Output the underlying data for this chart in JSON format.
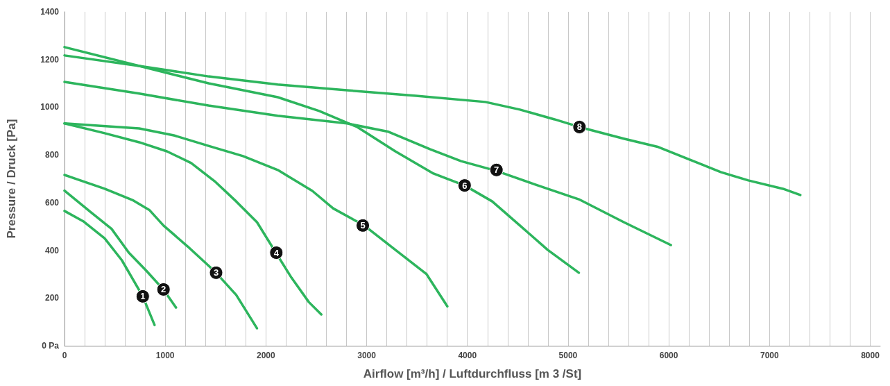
{
  "chart_data": {
    "type": "line",
    "xlabel": "Airflow [m³/h] / Luftdurchfluss [m 3 /St]",
    "ylabel": "Pressure / Druck [Pa]",
    "xlim": [
      0,
      8100
    ],
    "ylim": [
      0,
      1400
    ],
    "xticks": [
      0,
      {
        "value": 200,
        "label": null
      },
      {
        "value": 400,
        "label": null
      },
      {
        "value": 600,
        "label": null
      },
      {
        "value": 800,
        "label": null
      },
      1000,
      {
        "value": 1200,
        "label": null
      },
      {
        "value": 1400,
        "label": null
      },
      {
        "value": 1600,
        "label": null
      },
      {
        "value": 1800,
        "label": null
      },
      2000,
      {
        "value": 2200,
        "label": null
      },
      {
        "value": 2400,
        "label": null
      },
      {
        "value": 2600,
        "label": null
      },
      {
        "value": 2800,
        "label": null
      },
      3000,
      {
        "value": 3200,
        "label": null
      },
      {
        "value": 3400,
        "label": null
      },
      {
        "value": 3600,
        "label": null
      },
      {
        "value": 3800,
        "label": null
      },
      4000,
      {
        "value": 4200,
        "label": null
      },
      {
        "value": 4400,
        "label": null
      },
      {
        "value": 4600,
        "label": null
      },
      {
        "value": 4800,
        "label": null
      },
      5000,
      {
        "value": 5200,
        "label": null
      },
      {
        "value": 5400,
        "label": null
      },
      {
        "value": 5600,
        "label": null
      },
      {
        "value": 5800,
        "label": null
      },
      6000,
      {
        "value": 6200,
        "label": null
      },
      {
        "value": 6400,
        "label": null
      },
      {
        "value": 6600,
        "label": null
      },
      {
        "value": 6800,
        "label": null
      },
      7000,
      {
        "value": 7200,
        "label": null
      },
      {
        "value": 7400,
        "label": null
      },
      {
        "value": 7600,
        "label": null
      },
      {
        "value": 7800,
        "label": null
      },
      8000
    ],
    "yticks": [
      {
        "value": 0,
        "label": "0 Pa"
      },
      200,
      400,
      600,
      800,
      1000,
      1200,
      1400
    ],
    "grid": "x",
    "marker": "none",
    "line_style": "solid",
    "series": [
      {
        "color": "#2db55d",
        "x": [
          0,
          192,
          399,
          570,
          777,
          894
        ],
        "values": [
          565,
          520,
          450,
          358,
          207,
          87
        ]
      },
      {
        "color": "#2db55d",
        "x": [
          0,
          261,
          467,
          639,
          811,
          983,
          1107
        ],
        "values": [
          650,
          560,
          490,
          390,
          315,
          235,
          160
        ]
      },
      {
        "color": "#2db55d",
        "x": [
          0,
          399,
          674,
          845,
          983,
          1223,
          1498,
          1705,
          1911
        ],
        "values": [
          716,
          658,
          611,
          568,
          504,
          416,
          309,
          213,
          73
        ]
      },
      {
        "color": "#2db55d",
        "x": [
          0,
          399,
          742,
          1017,
          1258,
          1498,
          1705,
          1911,
          2103,
          2254,
          2426,
          2550
        ],
        "values": [
          932,
          891,
          853,
          815,
          766,
          687,
          605,
          518,
          387,
          285,
          183,
          131
        ]
      },
      {
        "color": "#2db55d",
        "x": [
          0,
          742,
          1086,
          1430,
          1773,
          2117,
          2461,
          2667,
          2976,
          3285,
          3595,
          3801
        ],
        "values": [
          932,
          911,
          882,
          838,
          795,
          737,
          649,
          576,
          504,
          402,
          300,
          165
        ]
      },
      {
        "color": "#2db55d",
        "x": [
          0,
          742,
          1430,
          2117,
          2529,
          2907,
          3285,
          3663,
          3973,
          4247,
          4522,
          4797,
          5107
        ],
        "values": [
          1252,
          1173,
          1100,
          1042,
          984,
          917,
          815,
          722,
          672,
          605,
          504,
          402,
          306
        ]
      },
      {
        "color": "#2db55d",
        "x": [
          0,
          742,
          1430,
          2117,
          2804,
          3217,
          3629,
          3938,
          4282,
          4660,
          5107,
          5553,
          6021
        ],
        "values": [
          1106,
          1057,
          1007,
          964,
          932,
          897,
          824,
          774,
          734,
          678,
          614,
          518,
          422
        ]
      },
      {
        "color": "#2db55d",
        "x": [
          0,
          742,
          1430,
          2117,
          2804,
          3491,
          4179,
          4522,
          4866,
          5113,
          5553,
          5897,
          6172,
          6516,
          6790,
          7134,
          7306
        ],
        "values": [
          1217,
          1173,
          1129,
          1095,
          1071,
          1048,
          1022,
          990,
          949,
          917,
          868,
          833,
          786,
          728,
          693,
          658,
          632
        ]
      }
    ],
    "annotations": [
      {
        "text": "1",
        "x": 777,
        "y": 207
      },
      {
        "text": "2",
        "x": 983,
        "y": 236
      },
      {
        "text": "3",
        "x": 1505,
        "y": 306
      },
      {
        "text": "4",
        "x": 2103,
        "y": 390
      },
      {
        "text": "5",
        "x": 2962,
        "y": 504
      },
      {
        "text": "6",
        "x": 3973,
        "y": 672
      },
      {
        "text": "7",
        "x": 4289,
        "y": 737
      },
      {
        "text": "8",
        "x": 5113,
        "y": 917
      }
    ]
  }
}
